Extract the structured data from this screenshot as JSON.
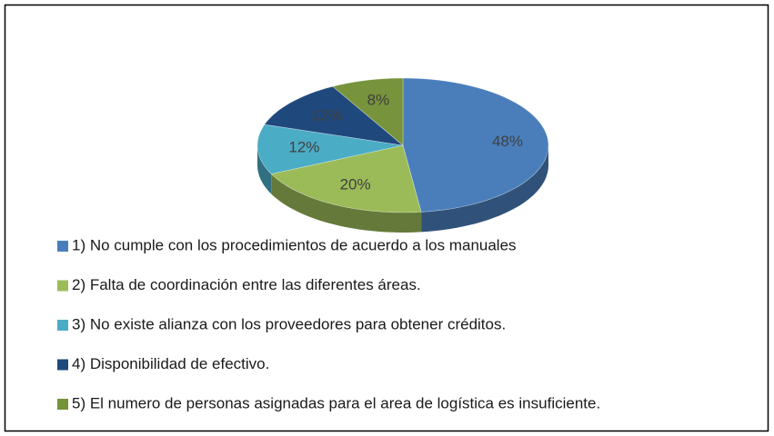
{
  "chart_data": {
    "type": "pie",
    "categories": [
      "1)  No cumple con los procedimientos de acuerdo a los manuales",
      "2)  Falta de coordinación entre las diferentes áreas.",
      "3)  No existe alianza con los proveedores para obtener créditos.",
      "4)  Disponibilidad de efectivo.",
      "5) El numero de personas asignadas para el area de logística es insuficiente."
    ],
    "values": [
      48,
      20,
      12,
      12,
      8
    ],
    "value_labels": [
      "48%",
      "20%",
      "12%",
      "12%",
      "8%"
    ],
    "colors": [
      "#4a7ebb",
      "#9bbb59",
      "#4bacc6",
      "#1f497d",
      "#77933c"
    ],
    "legend": "bottom"
  }
}
